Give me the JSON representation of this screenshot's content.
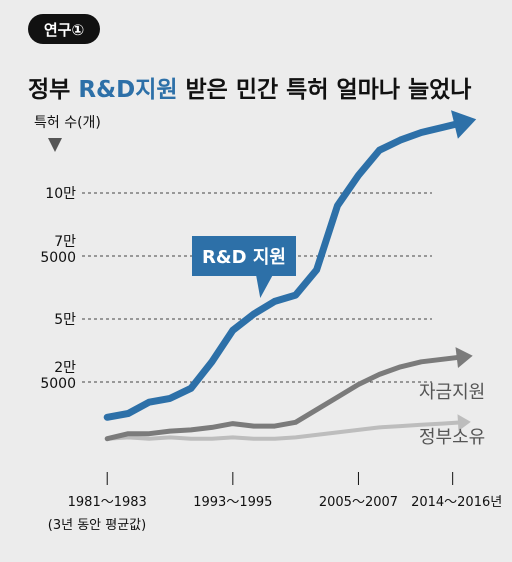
{
  "badge": "연구①",
  "title": {
    "pre": "정부 ",
    "accent": "R&D지원",
    "post": " 받은 민간 특허 얼마나 늘었나"
  },
  "colors": {
    "background": "#ececec",
    "accent": "#2d70a8",
    "series_grant": "#7b7b7b",
    "series_gov": "#bdbdbd",
    "badge_bg": "#111111",
    "grid": "#444444"
  },
  "chart_data": {
    "type": "line",
    "title": "정부 R&D지원 받은 민간 특허 얼마나 늘었나",
    "ylabel": "특허 수(개)",
    "xlabel": "",
    "y_ticks": [
      {
        "value": 25000,
        "label": "2만\n5000"
      },
      {
        "value": 50000,
        "label": "5만"
      },
      {
        "value": 75000,
        "label": "7만\n5000"
      },
      {
        "value": 100000,
        "label": "10만"
      }
    ],
    "ylim": [
      0,
      125000
    ],
    "grid": true,
    "x_ticks": [
      {
        "x": 1982,
        "label": "1981～1983"
      },
      {
        "x": 1994,
        "label": "1993～1995"
      },
      {
        "x": 2006,
        "label": "2005～2007"
      },
      {
        "x": 2015,
        "label": "2014～2016년"
      }
    ],
    "x_note": "(3년 동안 평균값)",
    "xlim": [
      1979.4,
      2020.0
    ],
    "series": [
      {
        "name": "R&D 지원",
        "label_style": "callout",
        "x": [
          1982,
          1984,
          1986,
          1988,
          1990,
          1992,
          1994,
          1996,
          1998,
          2000,
          2002,
          2004,
          2006,
          2008,
          2010,
          2012,
          2014,
          2016
        ],
        "values": [
          11000,
          12500,
          17000,
          18500,
          22500,
          33000,
          45500,
          52000,
          57000,
          59500,
          69500,
          95000,
          107000,
          117000,
          121000,
          124000,
          126000,
          128000
        ]
      },
      {
        "name": "자금지원",
        "label_style": "end",
        "x": [
          1982,
          1984,
          1986,
          1988,
          1990,
          1992,
          1994,
          1996,
          1998,
          2000,
          2002,
          2004,
          2006,
          2008,
          2010,
          2012,
          2014,
          2016
        ],
        "values": [
          2500,
          4500,
          4500,
          5500,
          6000,
          7000,
          8500,
          7500,
          7500,
          9000,
          14000,
          19000,
          24000,
          28000,
          31000,
          33000,
          34000,
          35000
        ]
      },
      {
        "name": "정부소유",
        "label_style": "end",
        "x": [
          1982,
          1984,
          1986,
          1988,
          1990,
          1992,
          1994,
          1996,
          1998,
          2000,
          2002,
          2004,
          2006,
          2008,
          2010,
          2012,
          2014,
          2016
        ],
        "values": [
          2500,
          3000,
          2500,
          3000,
          2500,
          2500,
          3000,
          2500,
          2500,
          3000,
          4000,
          5000,
          6000,
          7000,
          7500,
          8000,
          8500,
          9000
        ]
      }
    ]
  }
}
